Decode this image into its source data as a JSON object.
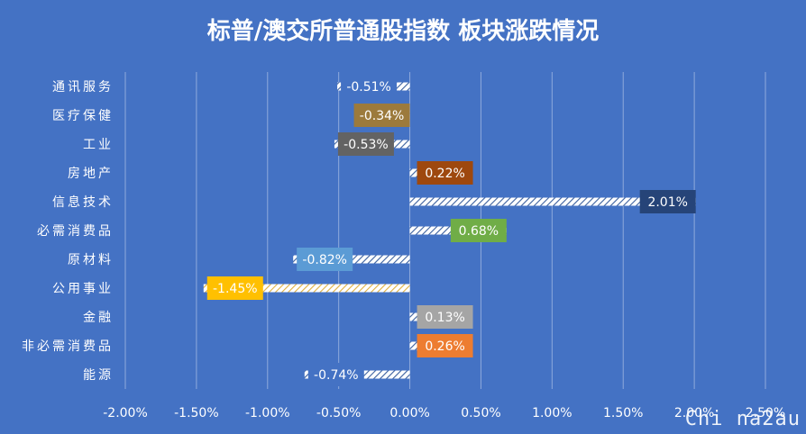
{
  "chart_data": {
    "type": "bar",
    "orientation": "horizontal",
    "title": "标普/澳交所普通股指数 板块涨跌情况",
    "categories": [
      "通讯服务",
      "医疗保健",
      "工业",
      "房地产",
      "信息技术",
      "必需消费品",
      "原材料",
      "公用事业",
      "金融",
      "非必需消费品",
      "能源"
    ],
    "values": [
      -0.51,
      -0.34,
      -0.53,
      0.22,
      2.01,
      0.68,
      -0.82,
      -1.45,
      0.13,
      0.26,
      -0.74
    ],
    "data_labels": [
      "-0.51%",
      "-0.34%",
      "-0.53%",
      "0.22%",
      "2.01%",
      "0.68%",
      "-0.82%",
      "-1.45%",
      "0.13%",
      "0.26%",
      "-0.74%"
    ],
    "label_colors": [
      "#4472C4",
      "#9C7A3C",
      "#636363",
      "#9E480E",
      "#264478",
      "#70AD47",
      "#5B9BD5",
      "#FFC000",
      "#A5A5A5",
      "#ED7D31",
      "#4472C4"
    ],
    "xlim": [
      -2.0,
      2.5
    ],
    "x_ticks": [
      "-2.00%",
      "-1.50%",
      "-1.00%",
      "-0.50%",
      "0.00%",
      "0.50%",
      "1.00%",
      "1.50%",
      "2.00%",
      "2.50%"
    ],
    "grid": true,
    "legend": "none",
    "colors": {
      "background": "#4472C4",
      "grid": "#8FAADC",
      "text": "#ffffff"
    }
  },
  "watermark": "Chi na2au"
}
